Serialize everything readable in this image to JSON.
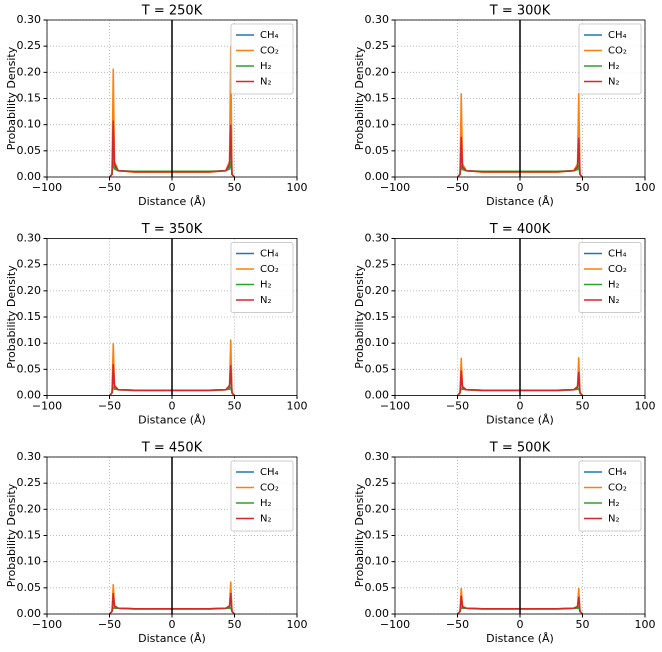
{
  "chart_data": [
    {
      "type": "line",
      "title": "T = 250K",
      "xlabel": "Distance (Å)",
      "ylabel": "Probability Density",
      "x": [
        -50,
        -48,
        -47,
        -46,
        -43,
        -30,
        -15,
        0,
        15,
        30,
        43,
        46,
        47,
        48,
        50
      ],
      "series": [
        {
          "name": "CH₄",
          "color": "#1f77b4",
          "values": [
            0,
            0.005,
            0.065,
            0.02,
            0.012,
            0.01,
            0.01,
            0.01,
            0.01,
            0.01,
            0.012,
            0.02,
            0.07,
            0.005,
            0
          ]
        },
        {
          "name": "CO₂",
          "color": "#ff7f0e",
          "values": [
            0,
            0.005,
            0.207,
            0.03,
            0.012,
            0.009,
            0.009,
            0.009,
            0.009,
            0.009,
            0.012,
            0.03,
            0.25,
            0.005,
            0
          ]
        },
        {
          "name": "H₂",
          "color": "#2ca02c",
          "values": [
            0,
            0.005,
            0.03,
            0.015,
            0.012,
            0.011,
            0.011,
            0.011,
            0.011,
            0.011,
            0.012,
            0.015,
            0.03,
            0.005,
            0
          ]
        },
        {
          "name": "N₂",
          "color": "#d62728",
          "values": [
            0,
            0.005,
            0.108,
            0.025,
            0.012,
            0.01,
            0.01,
            0.01,
            0.01,
            0.01,
            0.012,
            0.025,
            0.1,
            0.005,
            0
          ]
        }
      ],
      "xlim": [
        -100,
        100
      ],
      "xticks": [
        {
          "value": -100,
          "label": "−100"
        },
        {
          "value": -50,
          "label": "−50"
        },
        0,
        50,
        100
      ],
      "ylim": [
        0,
        0.3
      ],
      "yticks": [
        {
          "value": 0,
          "label": "0.00"
        },
        {
          "value": 0.05,
          "label": "0.05"
        },
        {
          "value": 0.1,
          "label": "0.10"
        },
        {
          "value": 0.15,
          "label": "0.15"
        },
        {
          "value": 0.2,
          "label": "0.20"
        },
        {
          "value": 0.25,
          "label": "0.25"
        },
        {
          "value": 0.3,
          "label": "0.30"
        }
      ],
      "vline": 0,
      "grid": true,
      "legend": "upper right"
    },
    {
      "type": "line",
      "title": "T = 300K",
      "xlabel": "Distance (Å)",
      "ylabel": "Probability Density",
      "x": [
        -50,
        -48,
        -47,
        -46,
        -43,
        -30,
        -15,
        0,
        15,
        30,
        43,
        46,
        47,
        48,
        50
      ],
      "series": [
        {
          "name": "CH₄",
          "color": "#1f77b4",
          "values": [
            0,
            0.005,
            0.05,
            0.018,
            0.012,
            0.01,
            0.01,
            0.01,
            0.01,
            0.01,
            0.012,
            0.018,
            0.05,
            0.005,
            0
          ]
        },
        {
          "name": "CO₂",
          "color": "#ff7f0e",
          "values": [
            0,
            0.005,
            0.16,
            0.025,
            0.012,
            0.009,
            0.009,
            0.009,
            0.009,
            0.009,
            0.012,
            0.025,
            0.16,
            0.005,
            0
          ]
        },
        {
          "name": "H₂",
          "color": "#2ca02c",
          "values": [
            0,
            0.005,
            0.02,
            0.014,
            0.012,
            0.011,
            0.011,
            0.011,
            0.011,
            0.011,
            0.012,
            0.014,
            0.02,
            0.005,
            0
          ]
        },
        {
          "name": "N₂",
          "color": "#d62728",
          "values": [
            0,
            0.005,
            0.077,
            0.02,
            0.012,
            0.01,
            0.01,
            0.01,
            0.01,
            0.01,
            0.012,
            0.02,
            0.075,
            0.005,
            0
          ]
        }
      ],
      "xlim": [
        -100,
        100
      ],
      "xticks": [
        {
          "value": -100,
          "label": "−100"
        },
        {
          "value": -50,
          "label": "−50"
        },
        0,
        50,
        100
      ],
      "ylim": [
        0,
        0.3
      ],
      "yticks": [
        {
          "value": 0,
          "label": "0.00"
        },
        {
          "value": 0.05,
          "label": "0.05"
        },
        {
          "value": 0.1,
          "label": "0.10"
        },
        {
          "value": 0.15,
          "label": "0.15"
        },
        {
          "value": 0.2,
          "label": "0.20"
        },
        {
          "value": 0.25,
          "label": "0.25"
        },
        {
          "value": 0.3,
          "label": "0.30"
        }
      ],
      "vline": 0,
      "grid": true,
      "legend": "upper right"
    },
    {
      "type": "line",
      "title": "T = 350K",
      "xlabel": "Distance (Å)",
      "ylabel": "Probability Density",
      "x": [
        -50,
        -48,
        -47,
        -46,
        -43,
        -30,
        -15,
        0,
        15,
        30,
        43,
        46,
        47,
        48,
        50
      ],
      "series": [
        {
          "name": "CH₄",
          "color": "#1f77b4",
          "values": [
            0,
            0.005,
            0.04,
            0.016,
            0.011,
            0.01,
            0.01,
            0.01,
            0.01,
            0.01,
            0.011,
            0.016,
            0.04,
            0.005,
            0
          ]
        },
        {
          "name": "CO₂",
          "color": "#ff7f0e",
          "values": [
            0,
            0.005,
            0.1,
            0.02,
            0.011,
            0.009,
            0.009,
            0.009,
            0.009,
            0.009,
            0.011,
            0.02,
            0.107,
            0.005,
            0
          ]
        },
        {
          "name": "H₂",
          "color": "#2ca02c",
          "values": [
            0,
            0.005,
            0.015,
            0.012,
            0.011,
            0.01,
            0.01,
            0.01,
            0.01,
            0.01,
            0.011,
            0.012,
            0.015,
            0.005,
            0
          ]
        },
        {
          "name": "N₂",
          "color": "#d62728",
          "values": [
            0,
            0.005,
            0.06,
            0.018,
            0.011,
            0.01,
            0.01,
            0.01,
            0.01,
            0.01,
            0.011,
            0.018,
            0.058,
            0.005,
            0
          ]
        }
      ],
      "xlim": [
        -100,
        100
      ],
      "xticks": [
        {
          "value": -100,
          "label": "−100"
        },
        {
          "value": -50,
          "label": "−50"
        },
        0,
        50,
        100
      ],
      "ylim": [
        0,
        0.3
      ],
      "yticks": [
        {
          "value": 0,
          "label": "0.00"
        },
        {
          "value": 0.05,
          "label": "0.05"
        },
        {
          "value": 0.1,
          "label": "0.10"
        },
        {
          "value": 0.15,
          "label": "0.15"
        },
        {
          "value": 0.2,
          "label": "0.20"
        },
        {
          "value": 0.25,
          "label": "0.25"
        },
        {
          "value": 0.3,
          "label": "0.30"
        }
      ],
      "vline": 0,
      "grid": true,
      "legend": "upper right"
    },
    {
      "type": "line",
      "title": "T = 400K",
      "xlabel": "Distance (Å)",
      "ylabel": "Probability Density",
      "x": [
        -50,
        -48,
        -47,
        -46,
        -43,
        -30,
        -15,
        0,
        15,
        30,
        43,
        46,
        47,
        48,
        50
      ],
      "series": [
        {
          "name": "CH₄",
          "color": "#1f77b4",
          "values": [
            0,
            0.005,
            0.035,
            0.015,
            0.011,
            0.01,
            0.01,
            0.01,
            0.01,
            0.01,
            0.011,
            0.015,
            0.035,
            0.005,
            0
          ]
        },
        {
          "name": "CO₂",
          "color": "#ff7f0e",
          "values": [
            0,
            0.005,
            0.072,
            0.018,
            0.011,
            0.009,
            0.009,
            0.009,
            0.009,
            0.009,
            0.011,
            0.018,
            0.073,
            0.005,
            0
          ]
        },
        {
          "name": "H₂",
          "color": "#2ca02c",
          "values": [
            0,
            0.005,
            0.013,
            0.012,
            0.011,
            0.01,
            0.01,
            0.01,
            0.01,
            0.01,
            0.011,
            0.012,
            0.013,
            0.005,
            0
          ]
        },
        {
          "name": "N₂",
          "color": "#d62728",
          "values": [
            0,
            0.005,
            0.048,
            0.016,
            0.011,
            0.01,
            0.01,
            0.01,
            0.01,
            0.01,
            0.011,
            0.016,
            0.045,
            0.005,
            0
          ]
        }
      ],
      "xlim": [
        -100,
        100
      ],
      "xticks": [
        {
          "value": -100,
          "label": "−100"
        },
        {
          "value": -50,
          "label": "−50"
        },
        0,
        50,
        100
      ],
      "ylim": [
        0,
        0.3
      ],
      "yticks": [
        {
          "value": 0,
          "label": "0.00"
        },
        {
          "value": 0.05,
          "label": "0.05"
        },
        {
          "value": 0.1,
          "label": "0.10"
        },
        {
          "value": 0.15,
          "label": "0.15"
        },
        {
          "value": 0.2,
          "label": "0.20"
        },
        {
          "value": 0.25,
          "label": "0.25"
        },
        {
          "value": 0.3,
          "label": "0.30"
        }
      ],
      "vline": 0,
      "grid": true,
      "legend": "upper right"
    },
    {
      "type": "line",
      "title": "T = 450K",
      "xlabel": "Distance (Å)",
      "ylabel": "Probability Density",
      "x": [
        -50,
        -48,
        -47,
        -46,
        -43,
        -30,
        -15,
        0,
        15,
        30,
        43,
        46,
        47,
        48,
        50
      ],
      "series": [
        {
          "name": "CH₄",
          "color": "#1f77b4",
          "values": [
            0,
            0.005,
            0.03,
            0.014,
            0.011,
            0.01,
            0.01,
            0.01,
            0.01,
            0.01,
            0.011,
            0.014,
            0.03,
            0.005,
            0
          ]
        },
        {
          "name": "CO₂",
          "color": "#ff7f0e",
          "values": [
            0,
            0.005,
            0.057,
            0.016,
            0.011,
            0.009,
            0.009,
            0.009,
            0.009,
            0.009,
            0.011,
            0.016,
            0.062,
            0.005,
            0
          ]
        },
        {
          "name": "H₂",
          "color": "#2ca02c",
          "values": [
            0,
            0.005,
            0.012,
            0.011,
            0.011,
            0.01,
            0.01,
            0.01,
            0.01,
            0.01,
            0.011,
            0.011,
            0.012,
            0.005,
            0
          ]
        },
        {
          "name": "N₂",
          "color": "#d62728",
          "values": [
            0,
            0.005,
            0.04,
            0.015,
            0.011,
            0.01,
            0.01,
            0.01,
            0.01,
            0.01,
            0.011,
            0.015,
            0.04,
            0.005,
            0
          ]
        }
      ],
      "xlim": [
        -100,
        100
      ],
      "xticks": [
        {
          "value": -100,
          "label": "−100"
        },
        {
          "value": -50,
          "label": "−50"
        },
        0,
        50,
        100
      ],
      "ylim": [
        0,
        0.3
      ],
      "yticks": [
        {
          "value": 0,
          "label": "0.00"
        },
        {
          "value": 0.05,
          "label": "0.05"
        },
        {
          "value": 0.1,
          "label": "0.10"
        },
        {
          "value": 0.15,
          "label": "0.15"
        },
        {
          "value": 0.2,
          "label": "0.20"
        },
        {
          "value": 0.25,
          "label": "0.25"
        },
        {
          "value": 0.3,
          "label": "0.30"
        }
      ],
      "vline": 0,
      "grid": true,
      "legend": "upper right"
    },
    {
      "type": "line",
      "title": "T = 500K",
      "xlabel": "Distance (Å)",
      "ylabel": "Probability Density",
      "x": [
        -50,
        -48,
        -47,
        -46,
        -43,
        -30,
        -15,
        0,
        15,
        30,
        43,
        46,
        47,
        48,
        50
      ],
      "series": [
        {
          "name": "CH₄",
          "color": "#1f77b4",
          "values": [
            0,
            0.005,
            0.028,
            0.014,
            0.011,
            0.01,
            0.01,
            0.01,
            0.01,
            0.01,
            0.011,
            0.014,
            0.028,
            0.005,
            0
          ]
        },
        {
          "name": "CO₂",
          "color": "#ff7f0e",
          "values": [
            0,
            0.005,
            0.05,
            0.015,
            0.011,
            0.009,
            0.009,
            0.009,
            0.009,
            0.009,
            0.011,
            0.015,
            0.05,
            0.005,
            0
          ]
        },
        {
          "name": "H₂",
          "color": "#2ca02c",
          "values": [
            0,
            0.005,
            0.012,
            0.011,
            0.011,
            0.01,
            0.01,
            0.01,
            0.01,
            0.01,
            0.011,
            0.011,
            0.012,
            0.005,
            0
          ]
        },
        {
          "name": "N₂",
          "color": "#d62728",
          "values": [
            0,
            0.005,
            0.035,
            0.014,
            0.011,
            0.01,
            0.01,
            0.01,
            0.01,
            0.01,
            0.011,
            0.014,
            0.033,
            0.005,
            0
          ]
        }
      ],
      "xlim": [
        -100,
        100
      ],
      "xticks": [
        {
          "value": -100,
          "label": "−100"
        },
        {
          "value": -50,
          "label": "−50"
        },
        0,
        50,
        100
      ],
      "ylim": [
        0,
        0.3
      ],
      "yticks": [
        {
          "value": 0,
          "label": "0.00"
        },
        {
          "value": 0.05,
          "label": "0.05"
        },
        {
          "value": 0.1,
          "label": "0.10"
        },
        {
          "value": 0.15,
          "label": "0.15"
        },
        {
          "value": 0.2,
          "label": "0.20"
        },
        {
          "value": 0.25,
          "label": "0.25"
        },
        {
          "value": 0.3,
          "label": "0.30"
        }
      ],
      "vline": 0,
      "grid": true,
      "legend": "upper right"
    }
  ]
}
